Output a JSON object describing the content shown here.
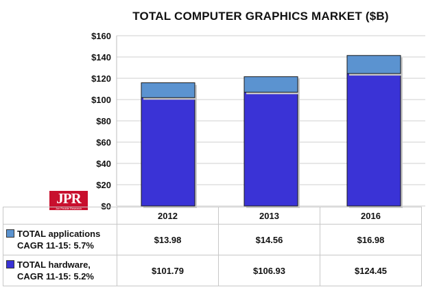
{
  "chart_data": {
    "type": "bar",
    "stacked": true,
    "title": "TOTAL COMPUTER GRAPHICS MARKET ($B)",
    "categories": [
      "2012",
      "2013",
      "2016"
    ],
    "series": [
      {
        "name": "TOTAL hardware,",
        "name_line2": "CAGR 11-15: 5.2%",
        "color": "#3a33d6",
        "values": [
          101.79,
          106.93,
          124.45
        ],
        "labels": [
          "$101.79",
          "$106.93",
          "$124.45"
        ]
      },
      {
        "name": "TOTAL applications",
        "name_line2": "CAGR 11-15: 5.7%",
        "color": "#5b93d0",
        "values": [
          13.98,
          14.56,
          16.98
        ],
        "labels": [
          "$13.98",
          "$14.56",
          "$16.98"
        ]
      }
    ],
    "ylim": [
      0,
      160
    ],
    "yticks": [
      0,
      20,
      40,
      60,
      80,
      100,
      120,
      140,
      160
    ],
    "ytick_labels": [
      "$0",
      "$20",
      "$40",
      "$60",
      "$80",
      "$100",
      "$120",
      "$140",
      "$160"
    ],
    "grid": true,
    "legend": "table-below"
  },
  "logo": {
    "text": "JPR",
    "subtext": "Jon Peddie Research"
  }
}
